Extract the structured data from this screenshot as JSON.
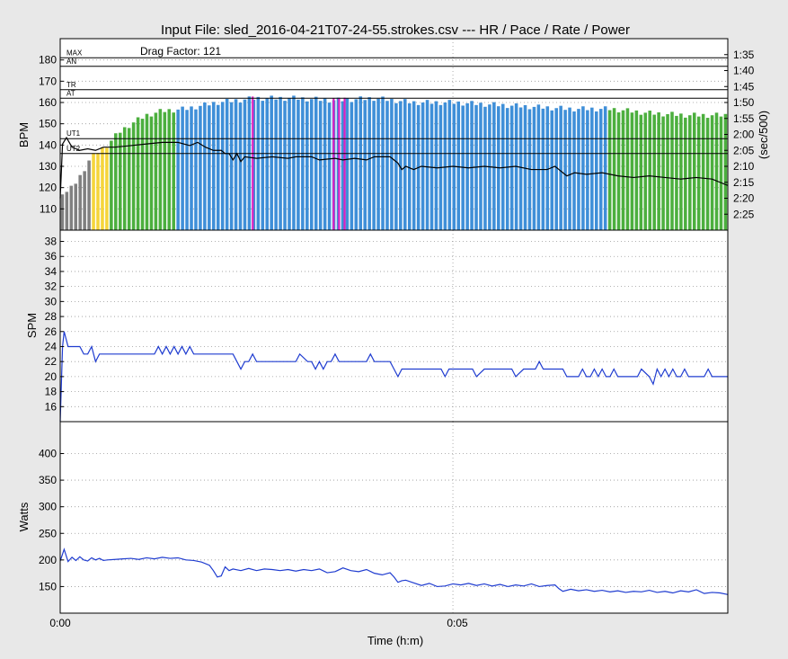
{
  "title": "Input File:  sled_2016-04-21T07-24-55.strokes.csv --- HR / Pace / Rate / Power",
  "annotation": "Drag Factor: 121",
  "xlabel": "Time (h:m)",
  "xticks": [
    "0:00",
    "0:05"
  ],
  "chart_data": [
    {
      "type": "bar",
      "panel": "heart-rate",
      "ylabel": "BPM",
      "y2label": "(sec/500)",
      "ylim": [
        100,
        190
      ],
      "yticks": [
        110,
        120,
        130,
        140,
        150,
        160,
        170,
        180
      ],
      "y2lim": [
        150,
        90
      ],
      "y2ticks": [
        95,
        100,
        105,
        110,
        115,
        120,
        125,
        130,
        135,
        140,
        145
      ],
      "y2ticklabels": [
        "1:35",
        "1:40",
        "1:45",
        "1:50",
        "1:55",
        "2:00",
        "2:05",
        "2:10",
        "2:15",
        "2:20",
        "2:25"
      ],
      "xlim_min": [
        0,
        8.5
      ],
      "zones": [
        {
          "name": "MAX",
          "value": 181
        },
        {
          "name": "AN",
          "value": 177
        },
        {
          "name": "TR",
          "value": 166
        },
        {
          "name": "AT",
          "value": 162
        },
        {
          "name": "UT1",
          "value": 143
        },
        {
          "name": "UT2",
          "value": 136
        }
      ],
      "zone_colors": {
        "gray": "#808080",
        "yellow": "#f5d53a",
        "green": "#4caf3e",
        "blue": "#3f8fd8",
        "magenta": "#e020c0"
      },
      "hr_knots": [
        [
          0,
          118
        ],
        [
          0.1,
          118
        ],
        [
          0.15,
          120
        ],
        [
          0.25,
          125
        ],
        [
          0.3,
          128
        ],
        [
          0.35,
          132
        ],
        [
          0.45,
          136
        ],
        [
          0.6,
          140
        ],
        [
          0.75,
          146
        ],
        [
          0.95,
          151
        ],
        [
          1.1,
          154
        ],
        [
          1.3,
          156
        ],
        [
          1.6,
          157
        ],
        [
          2.0,
          160
        ],
        [
          2.5,
          162
        ],
        [
          3.0,
          162
        ],
        [
          3.5,
          161
        ],
        [
          4.0,
          162
        ],
        [
          4.5,
          160
        ],
        [
          5.0,
          160
        ],
        [
          5.5,
          159
        ],
        [
          6.0,
          158
        ],
        [
          6.5,
          157
        ],
        [
          7.0,
          157
        ],
        [
          7.5,
          155
        ],
        [
          8.0,
          154
        ],
        [
          8.5,
          154
        ]
      ],
      "hr_segments": [
        {
          "from": 0,
          "to": 0.38,
          "color": "gray"
        },
        {
          "from": 0.38,
          "to": 0.6,
          "color": "yellow"
        },
        {
          "from": 0.6,
          "to": 1.5,
          "color": "green"
        },
        {
          "from": 1.5,
          "to": 6.95,
          "color": "blue"
        },
        {
          "from": 6.95,
          "to": 8.5,
          "color": "green"
        }
      ],
      "magenta_bars": [
        2.45,
        3.48,
        3.55,
        3.62
      ],
      "pace_knots": [
        [
          0,
          140
        ],
        [
          0.03,
          123
        ],
        [
          0.08,
          121
        ],
        [
          0.15,
          124
        ],
        [
          0.25,
          125
        ],
        [
          0.35,
          124.5
        ],
        [
          0.45,
          125
        ],
        [
          0.55,
          124
        ],
        [
          0.7,
          124
        ],
        [
          0.9,
          123.5
        ],
        [
          1.1,
          123
        ],
        [
          1.3,
          122.5
        ],
        [
          1.5,
          122.5
        ],
        [
          1.65,
          123.5
        ],
        [
          1.75,
          122.5
        ],
        [
          1.85,
          124
        ],
        [
          1.95,
          125
        ],
        [
          2.05,
          125
        ],
        [
          2.1,
          126
        ],
        [
          2.15,
          126
        ],
        [
          2.2,
          128
        ],
        [
          2.25,
          126
        ],
        [
          2.3,
          128.5
        ],
        [
          2.35,
          127
        ],
        [
          2.5,
          127.5
        ],
        [
          2.7,
          127
        ],
        [
          2.9,
          127.5
        ],
        [
          3.0,
          127
        ],
        [
          3.2,
          127
        ],
        [
          3.3,
          128
        ],
        [
          3.5,
          127.5
        ],
        [
          3.6,
          128
        ],
        [
          3.75,
          127.5
        ],
        [
          3.9,
          128
        ],
        [
          4.0,
          127
        ],
        [
          4.2,
          127
        ],
        [
          4.25,
          128
        ],
        [
          4.3,
          129
        ],
        [
          4.35,
          131
        ],
        [
          4.4,
          130
        ],
        [
          4.5,
          131
        ],
        [
          4.6,
          130
        ],
        [
          4.8,
          130.5
        ],
        [
          5.0,
          130
        ],
        [
          5.2,
          130.5
        ],
        [
          5.4,
          130
        ],
        [
          5.6,
          130.5
        ],
        [
          5.8,
          130
        ],
        [
          6.0,
          131
        ],
        [
          6.2,
          131
        ],
        [
          6.3,
          130
        ],
        [
          6.35,
          131
        ],
        [
          6.45,
          133
        ],
        [
          6.55,
          132
        ],
        [
          6.7,
          132.5
        ],
        [
          6.9,
          132
        ],
        [
          7.1,
          133
        ],
        [
          7.3,
          133.5
        ],
        [
          7.5,
          133
        ],
        [
          7.7,
          133.5
        ],
        [
          7.9,
          134
        ],
        [
          8.1,
          133.5
        ],
        [
          8.3,
          134
        ],
        [
          8.4,
          135
        ],
        [
          8.5,
          136
        ]
      ]
    },
    {
      "type": "line",
      "panel": "stroke-rate",
      "ylabel": "SPM",
      "ylim": [
        14,
        39.5
      ],
      "yticks": [
        16,
        18,
        20,
        22,
        24,
        26,
        28,
        30,
        32,
        34,
        36,
        38
      ],
      "series_color": "#1f3cd0",
      "x": [
        0,
        0.03,
        0.05,
        0.1,
        0.15,
        0.25,
        0.3,
        0.35,
        0.4,
        0.45,
        0.5,
        0.55,
        0.6,
        1.2,
        1.25,
        1.3,
        1.35,
        1.4,
        1.45,
        1.5,
        1.55,
        1.6,
        1.65,
        1.7,
        1.75,
        1.8,
        1.85,
        1.9,
        1.95,
        2.0,
        2.2,
        2.25,
        2.3,
        2.35,
        2.4,
        2.45,
        2.5,
        2.6,
        2.65,
        2.7,
        2.75,
        2.8,
        2.85,
        2.9,
        3.0,
        3.05,
        3.15,
        3.2,
        3.25,
        3.3,
        3.35,
        3.4,
        3.45,
        3.5,
        3.55,
        3.6,
        3.7,
        3.75,
        3.8,
        3.85,
        3.9,
        3.95,
        4.0,
        4.05,
        4.1,
        4.15,
        4.2,
        4.25,
        4.3,
        4.35,
        4.4,
        4.45,
        4.5,
        4.55,
        4.6,
        4.8,
        4.85,
        4.9,
        4.95,
        5.0,
        5.2,
        5.25,
        5.3,
        5.4,
        5.6,
        5.7,
        5.75,
        5.8,
        5.9,
        6.0,
        6.05,
        6.1,
        6.15,
        6.2,
        6.25,
        6.3,
        6.35,
        6.4,
        6.45,
        6.5,
        6.6,
        6.65,
        6.7,
        6.75,
        6.8,
        6.85,
        6.9,
        6.95,
        7.0,
        7.05,
        7.1,
        7.3,
        7.35,
        7.4,
        7.5,
        7.55,
        7.6,
        7.65,
        7.7,
        7.75,
        7.8,
        7.85,
        7.9,
        7.95,
        8.0,
        8.2,
        8.25,
        8.3,
        8.5
      ],
      "y": [
        14,
        24,
        26,
        24,
        24,
        24,
        23,
        23,
        24,
        22,
        23,
        23,
        23,
        23,
        24,
        23,
        24,
        23,
        24,
        23,
        24,
        23,
        24,
        23,
        23,
        23,
        23,
        23,
        23,
        23,
        23,
        22,
        21,
        22,
        22,
        23,
        22,
        22,
        22,
        22,
        22,
        22,
        22,
        22,
        22,
        23,
        22,
        22,
        21,
        22,
        21,
        22,
        22,
        23,
        22,
        22,
        22,
        22,
        22,
        22,
        22,
        23,
        22,
        22,
        22,
        22,
        22,
        21,
        20,
        21,
        21,
        21,
        21,
        21,
        21,
        21,
        21,
        20,
        21,
        21,
        21,
        21,
        20,
        21,
        21,
        21,
        21,
        20,
        21,
        21,
        21,
        22,
        21,
        21,
        21,
        21,
        21,
        21,
        20,
        20,
        20,
        21,
        20,
        20,
        21,
        20,
        21,
        20,
        20,
        21,
        20,
        20,
        20,
        21,
        20,
        19,
        21,
        20,
        21,
        20,
        21,
        20,
        20,
        21,
        20,
        20,
        21,
        20,
        20
      ]
    },
    {
      "type": "line",
      "panel": "power",
      "ylabel": "Watts",
      "ylim": [
        100,
        460
      ],
      "yticks": [
        150,
        200,
        250,
        300,
        350,
        400
      ],
      "series_color": "#1f3cd0",
      "x": [
        0,
        0.05,
        0.1,
        0.15,
        0.2,
        0.25,
        0.3,
        0.35,
        0.4,
        0.45,
        0.5,
        0.55,
        0.6,
        0.7,
        0.8,
        0.9,
        1.0,
        1.1,
        1.2,
        1.3,
        1.4,
        1.5,
        1.6,
        1.7,
        1.8,
        1.9,
        1.95,
        2.0,
        2.05,
        2.1,
        2.15,
        2.2,
        2.3,
        2.4,
        2.5,
        2.6,
        2.7,
        2.8,
        2.9,
        3.0,
        3.1,
        3.2,
        3.3,
        3.4,
        3.5,
        3.6,
        3.7,
        3.8,
        3.9,
        4.0,
        4.1,
        4.2,
        4.25,
        4.3,
        4.35,
        4.4,
        4.5,
        4.6,
        4.7,
        4.8,
        4.9,
        5.0,
        5.1,
        5.2,
        5.3,
        5.4,
        5.5,
        5.6,
        5.7,
        5.8,
        5.9,
        6.0,
        6.1,
        6.2,
        6.3,
        6.35,
        6.4,
        6.5,
        6.6,
        6.7,
        6.8,
        6.9,
        7.0,
        7.1,
        7.2,
        7.3,
        7.4,
        7.5,
        7.6,
        7.7,
        7.8,
        7.9,
        8.0,
        8.1,
        8.2,
        8.3,
        8.4,
        8.5
      ],
      "y": [
        198,
        220,
        197,
        205,
        199,
        206,
        200,
        198,
        204,
        200,
        203,
        199,
        200,
        201,
        202,
        203,
        201,
        204,
        202,
        205,
        203,
        204,
        200,
        199,
        196,
        190,
        180,
        168,
        170,
        187,
        180,
        183,
        180,
        184,
        180,
        183,
        182,
        180,
        182,
        179,
        182,
        180,
        183,
        176,
        178,
        185,
        180,
        178,
        182,
        175,
        172,
        176,
        168,
        158,
        161,
        162,
        157,
        152,
        156,
        150,
        151,
        155,
        153,
        156,
        152,
        155,
        151,
        154,
        150,
        153,
        151,
        155,
        150,
        152,
        153,
        146,
        141,
        145,
        142,
        144,
        141,
        143,
        140,
        142,
        139,
        141,
        140,
        143,
        139,
        141,
        138,
        142,
        140,
        144,
        137,
        139,
        138,
        135
      ]
    }
  ]
}
